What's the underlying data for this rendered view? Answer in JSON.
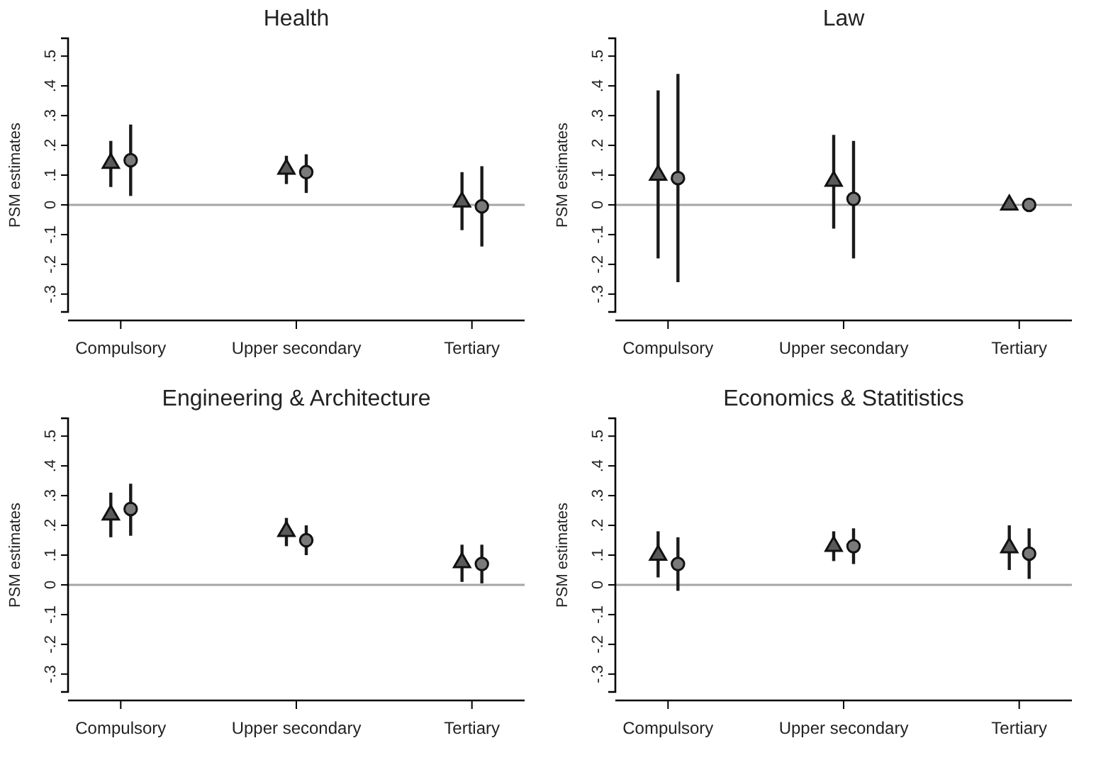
{
  "chart_data": [
    {
      "type": "scatter",
      "title": "Health",
      "ylabel": "PSM estimates",
      "categories": [
        "Compulsory",
        "Upper secondary",
        "Tertiary"
      ],
      "ylim": [
        -0.36,
        0.56
      ],
      "yticks": [
        {
          "value": -0.3,
          "label": "-.3"
        },
        {
          "value": -0.2,
          "label": "-.2"
        },
        {
          "value": -0.1,
          "label": "-.1"
        },
        {
          "value": 0,
          "label": "0"
        },
        {
          "value": 0.1,
          "label": ".1"
        },
        {
          "value": 0.2,
          "label": ".2"
        },
        {
          "value": 0.3,
          "label": ".3"
        },
        {
          "value": 0.4,
          "label": ".4"
        },
        {
          "value": 0.5,
          "label": ".5"
        }
      ],
      "ref_lines": [
        {
          "axis": "y",
          "value": 0,
          "color": "#a6a6a6"
        }
      ],
      "series": [
        {
          "color": "#5a5a5a",
          "marker": "triangle",
          "values": [
            0.14,
            0.12,
            0.01
          ],
          "errors": [
            [
              0.06,
              0.215
            ],
            [
              0.07,
              0.165
            ],
            [
              -0.085,
              0.11
            ]
          ]
        },
        {
          "color": "#7a7a7a",
          "marker": "circle",
          "values": [
            0.15,
            0.11,
            -0.005
          ],
          "errors": [
            [
              0.03,
              0.27
            ],
            [
              0.04,
              0.17
            ],
            [
              -0.14,
              0.13
            ]
          ]
        }
      ]
    },
    {
      "type": "scatter",
      "title": "Law",
      "ylabel": "PSM estimates",
      "categories": [
        "Compulsory",
        "Upper secondary",
        "Tertiary"
      ],
      "ylim": [
        -0.36,
        0.56
      ],
      "yticks": [
        {
          "value": -0.3,
          "label": "-.3"
        },
        {
          "value": -0.2,
          "label": "-.2"
        },
        {
          "value": -0.1,
          "label": "-.1"
        },
        {
          "value": 0,
          "label": "0"
        },
        {
          "value": 0.1,
          "label": ".1"
        },
        {
          "value": 0.2,
          "label": ".2"
        },
        {
          "value": 0.3,
          "label": ".3"
        },
        {
          "value": 0.4,
          "label": ".4"
        },
        {
          "value": 0.5,
          "label": ".5"
        }
      ],
      "ref_lines": [
        {
          "axis": "y",
          "value": 0,
          "color": "#a6a6a6"
        }
      ],
      "series": [
        {
          "color": "#5a5a5a",
          "marker": "triangle",
          "values": [
            0.1,
            0.08,
            0.0
          ],
          "errors": [
            [
              -0.18,
              0.385
            ],
            [
              -0.08,
              0.235
            ],
            null
          ]
        },
        {
          "color": "#7a7a7a",
          "marker": "circle",
          "values": [
            0.09,
            0.02,
            0.0
          ],
          "errors": [
            [
              -0.26,
              0.44
            ],
            [
              -0.18,
              0.215
            ],
            null
          ]
        }
      ]
    },
    {
      "type": "scatter",
      "title": "Engineering & Architecture",
      "ylabel": "PSM estimates",
      "categories": [
        "Compulsory",
        "Upper secondary",
        "Tertiary"
      ],
      "ylim": [
        -0.36,
        0.56
      ],
      "yticks": [
        {
          "value": -0.3,
          "label": "-.3"
        },
        {
          "value": -0.2,
          "label": "-.2"
        },
        {
          "value": -0.1,
          "label": "-.1"
        },
        {
          "value": 0,
          "label": "0"
        },
        {
          "value": 0.1,
          "label": ".1"
        },
        {
          "value": 0.2,
          "label": ".2"
        },
        {
          "value": 0.3,
          "label": ".3"
        },
        {
          "value": 0.4,
          "label": ".4"
        },
        {
          "value": 0.5,
          "label": ".5"
        }
      ],
      "ref_lines": [
        {
          "axis": "y",
          "value": 0,
          "color": "#a6a6a6"
        }
      ],
      "series": [
        {
          "color": "#5a5a5a",
          "marker": "triangle",
          "values": [
            0.235,
            0.18,
            0.075
          ],
          "errors": [
            [
              0.16,
              0.31
            ],
            [
              0.13,
              0.225
            ],
            [
              0.01,
              0.135
            ]
          ]
        },
        {
          "color": "#7a7a7a",
          "marker": "circle",
          "values": [
            0.255,
            0.15,
            0.07
          ],
          "errors": [
            [
              0.165,
              0.34
            ],
            [
              0.1,
              0.2
            ],
            [
              0.005,
              0.135
            ]
          ]
        }
      ]
    },
    {
      "type": "scatter",
      "title": "Economics & Statitistics",
      "ylabel": "PSM estimates",
      "categories": [
        "Compulsory",
        "Upper secondary",
        "Tertiary"
      ],
      "ylim": [
        -0.36,
        0.56
      ],
      "yticks": [
        {
          "value": -0.3,
          "label": "-.3"
        },
        {
          "value": -0.2,
          "label": "-.2"
        },
        {
          "value": -0.1,
          "label": "-.1"
        },
        {
          "value": 0,
          "label": "0"
        },
        {
          "value": 0.1,
          "label": ".1"
        },
        {
          "value": 0.2,
          "label": ".2"
        },
        {
          "value": 0.3,
          "label": ".3"
        },
        {
          "value": 0.4,
          "label": ".4"
        },
        {
          "value": 0.5,
          "label": ".5"
        }
      ],
      "ref_lines": [
        {
          "axis": "y",
          "value": 0,
          "color": "#a6a6a6"
        }
      ],
      "series": [
        {
          "color": "#5a5a5a",
          "marker": "triangle",
          "values": [
            0.1,
            0.13,
            0.125
          ],
          "errors": [
            [
              0.025,
              0.18
            ],
            [
              0.08,
              0.18
            ],
            [
              0.05,
              0.2
            ]
          ]
        },
        {
          "color": "#7a7a7a",
          "marker": "circle",
          "values": [
            0.07,
            0.13,
            0.105
          ],
          "errors": [
            [
              -0.02,
              0.16
            ],
            [
              0.07,
              0.19
            ],
            [
              0.02,
              0.19
            ]
          ]
        }
      ]
    }
  ]
}
